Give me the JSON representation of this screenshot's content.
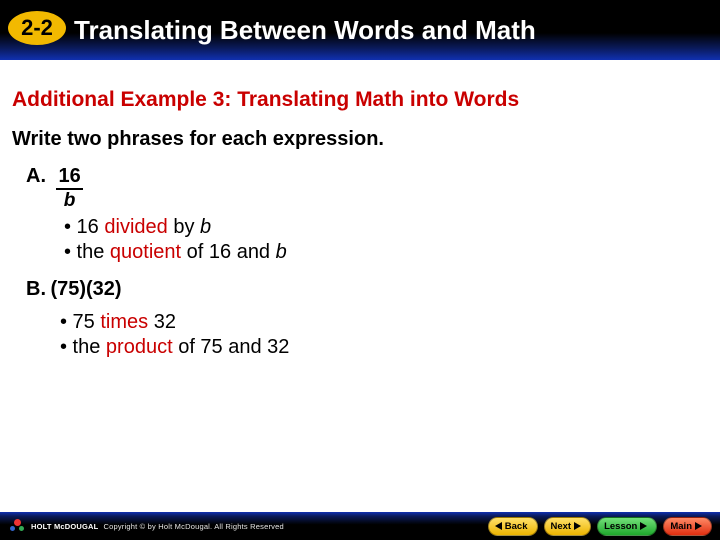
{
  "header": {
    "section_number": "2-2",
    "title": "Translating Between Words and Math",
    "badge_bg": "#f2b900",
    "title_color": "#ffffff"
  },
  "content": {
    "example_heading": "Additional Example 3: Translating Math into Words",
    "heading_color": "#c90000",
    "instruction": "Write two phrases for each expression.",
    "keyword_color": "#c90000",
    "item_a": {
      "label": "A.",
      "numerator": "16",
      "denominator": "b",
      "bullet1_pre": "• 16 ",
      "bullet1_kw": "divided",
      "bullet1_post": " by ",
      "bullet1_var": "b",
      "bullet2_pre": "•  the ",
      "bullet2_kw": "quotient",
      "bullet2_post": " of 16 and ",
      "bullet2_var": "b"
    },
    "item_b": {
      "label": "B.",
      "expression": "(75)(32)",
      "bullet1_pre": "• 75 ",
      "bullet1_kw": "times",
      "bullet1_post": " 32",
      "bullet2_pre": "• the ",
      "bullet2_kw": "product",
      "bullet2_post": " of 75 and 32"
    }
  },
  "footer": {
    "brand": "HOLT McDOUGAL",
    "copyright": "Copyright © by Holt McDougal. All Rights Reserved",
    "nav": {
      "back": "Back",
      "next": "Next",
      "lesson": "Lesson",
      "main": "Main"
    }
  }
}
